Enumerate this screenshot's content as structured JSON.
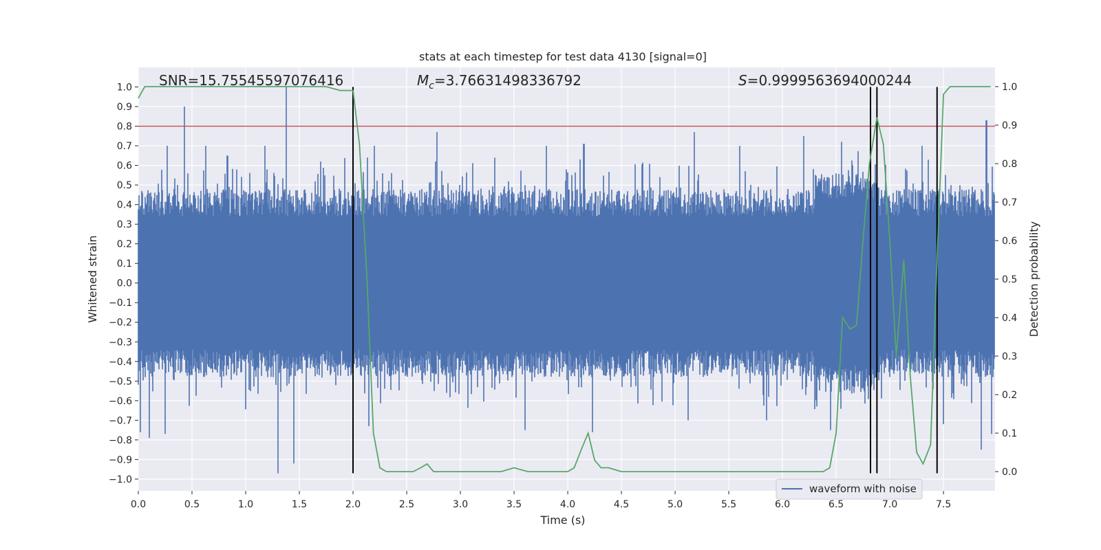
{
  "chart_data": {
    "type": "line",
    "title": "stats at each timestep for test data 4130 [signal=0]",
    "xlabel": "Time (s)",
    "ylabel": "Whitened strain",
    "y2label": "Detection probability",
    "xlim": [
      0,
      7.98
    ],
    "ylim": [
      -1.06,
      1.1
    ],
    "y2lim": [
      -0.05,
      1.05
    ],
    "x_ticks": [
      0.0,
      0.5,
      1.0,
      1.5,
      2.0,
      2.5,
      3.0,
      3.5,
      4.0,
      4.5,
      5.0,
      5.5,
      6.0,
      6.5,
      7.0,
      7.5
    ],
    "x_tick_labels": [
      "0.0",
      "0.5",
      "1.0",
      "1.5",
      "2.0",
      "2.5",
      "3.0",
      "3.5",
      "4.0",
      "4.5",
      "5.0",
      "5.5",
      "6.0",
      "6.5",
      "7.0",
      "7.5"
    ],
    "y_ticks": [
      -1.0,
      -0.9,
      -0.8,
      -0.7,
      -0.6,
      -0.5,
      -0.4,
      -0.3,
      -0.2,
      -0.1,
      0.0,
      0.1,
      0.2,
      0.3,
      0.4,
      0.5,
      0.6,
      0.7,
      0.8,
      0.9,
      1.0
    ],
    "y_tick_labels": [
      "−1.0",
      "−0.9",
      "−0.8",
      "−0.7",
      "−0.6",
      "−0.5",
      "−0.4",
      "−0.3",
      "−0.2",
      "−0.1",
      "0.0",
      "0.1",
      "0.2",
      "0.3",
      "0.4",
      "0.5",
      "0.6",
      "0.7",
      "0.8",
      "0.9",
      "1.0"
    ],
    "y2_ticks": [
      0.0,
      0.1,
      0.2,
      0.3,
      0.4,
      0.5,
      0.6,
      0.7,
      0.8,
      0.9,
      1.0
    ],
    "y2_tick_labels": [
      "0.0",
      "0.1",
      "0.2",
      "0.3",
      "0.4",
      "0.5",
      "0.6",
      "0.7",
      "0.8",
      "0.9",
      "1.0"
    ],
    "annotations": {
      "snr": "SNR=15.75545597076416",
      "mc_symbol": "M",
      "mc_subscript": "c",
      "mc_value": "=3.76631498336792",
      "s_symbol": "S",
      "s_value": "=0.9999563694000244"
    },
    "threshold": 0.8,
    "vlines": [
      2.0,
      6.82,
      6.88,
      7.44
    ],
    "waveform": {
      "name": "waveform with noise",
      "color": "#4c72b0",
      "sample_rate": 2048,
      "envelope": {
        "typical_peak": 0.45,
        "max": 1.0,
        "min": -0.97
      },
      "spikes": [
        {
          "x": 0.43,
          "y": 0.9
        },
        {
          "x": 1.38,
          "y": 1.0
        },
        {
          "x": 1.3,
          "y": -0.97
        },
        {
          "x": 1.45,
          "y": -0.92
        },
        {
          "x": 0.1,
          "y": -0.79
        },
        {
          "x": 0.25,
          "y": -0.77
        },
        {
          "x": 0.27,
          "y": 0.7
        },
        {
          "x": 0.63,
          "y": 0.7
        },
        {
          "x": 0.83,
          "y": 0.65
        },
        {
          "x": 1.18,
          "y": 0.7
        },
        {
          "x": 1.7,
          "y": 0.62
        },
        {
          "x": 2.2,
          "y": 0.7
        },
        {
          "x": 2.78,
          "y": 0.77
        },
        {
          "x": 3.8,
          "y": 0.7
        },
        {
          "x": 4.15,
          "y": 0.71
        },
        {
          "x": 5.18,
          "y": 0.77
        },
        {
          "x": 5.12,
          "y": -0.7
        },
        {
          "x": 5.6,
          "y": 0.7
        },
        {
          "x": 6.2,
          "y": 0.75
        },
        {
          "x": 6.55,
          "y": 0.72
        },
        {
          "x": 6.45,
          "y": -0.75
        },
        {
          "x": 7.3,
          "y": 0.7
        },
        {
          "x": 7.9,
          "y": 0.83
        },
        {
          "x": 7.85,
          "y": -0.85
        },
        {
          "x": 0.02,
          "y": -0.76
        },
        {
          "x": 2.15,
          "y": -0.73
        },
        {
          "x": 3.6,
          "y": -0.75
        },
        {
          "x": 4.23,
          "y": -0.76
        },
        {
          "x": 5.85,
          "y": -0.7
        },
        {
          "x": 7.5,
          "y": -0.72
        },
        {
          "x": 7.95,
          "y": -0.77
        }
      ]
    },
    "probability": {
      "name": "detection probability",
      "color": "#55a868",
      "x": [
        0.0,
        0.06,
        0.13,
        0.19,
        0.25,
        0.5,
        0.75,
        1.0,
        1.25,
        1.5,
        1.75,
        1.88,
        1.94,
        2.0,
        2.06,
        2.13,
        2.19,
        2.25,
        2.31,
        2.38,
        2.5,
        2.56,
        2.63,
        2.69,
        2.75,
        2.81,
        3.0,
        3.13,
        3.25,
        3.38,
        3.5,
        3.63,
        3.75,
        3.88,
        4.0,
        4.06,
        4.13,
        4.19,
        4.25,
        4.31,
        4.38,
        4.5,
        4.63,
        4.75,
        4.88,
        5.0,
        5.25,
        5.5,
        5.75,
        6.0,
        6.13,
        6.25,
        6.38,
        6.44,
        6.5,
        6.56,
        6.63,
        6.69,
        6.75,
        6.81,
        6.88,
        6.94,
        7.0,
        7.06,
        7.13,
        7.19,
        7.25,
        7.31,
        7.38,
        7.44,
        7.5,
        7.56,
        7.63,
        7.69,
        7.75,
        7.81,
        7.88,
        7.94
      ],
      "y": [
        0.97,
        1.0,
        1.0,
        1.0,
        1.0,
        1.0,
        1.0,
        1.0,
        1.0,
        1.0,
        1.0,
        0.99,
        0.99,
        0.99,
        0.85,
        0.5,
        0.1,
        0.01,
        0.0,
        0.0,
        0.0,
        0.0,
        0.01,
        0.02,
        0.0,
        0.0,
        0.0,
        0.0,
        0.0,
        0.0,
        0.01,
        0.0,
        0.0,
        0.0,
        0.0,
        0.01,
        0.06,
        0.1,
        0.03,
        0.01,
        0.01,
        0.0,
        0.0,
        0.0,
        0.0,
        0.0,
        0.0,
        0.0,
        0.0,
        0.0,
        0.0,
        0.0,
        0.0,
        0.01,
        0.1,
        0.4,
        0.37,
        0.38,
        0.6,
        0.8,
        0.92,
        0.85,
        0.6,
        0.3,
        0.55,
        0.25,
        0.05,
        0.02,
        0.07,
        0.55,
        0.98,
        1.0,
        1.0,
        1.0,
        1.0,
        1.0,
        1.0,
        1.0
      ]
    },
    "legend": {
      "label": "waveform with noise",
      "placement": "lower-right"
    },
    "grid": true
  }
}
